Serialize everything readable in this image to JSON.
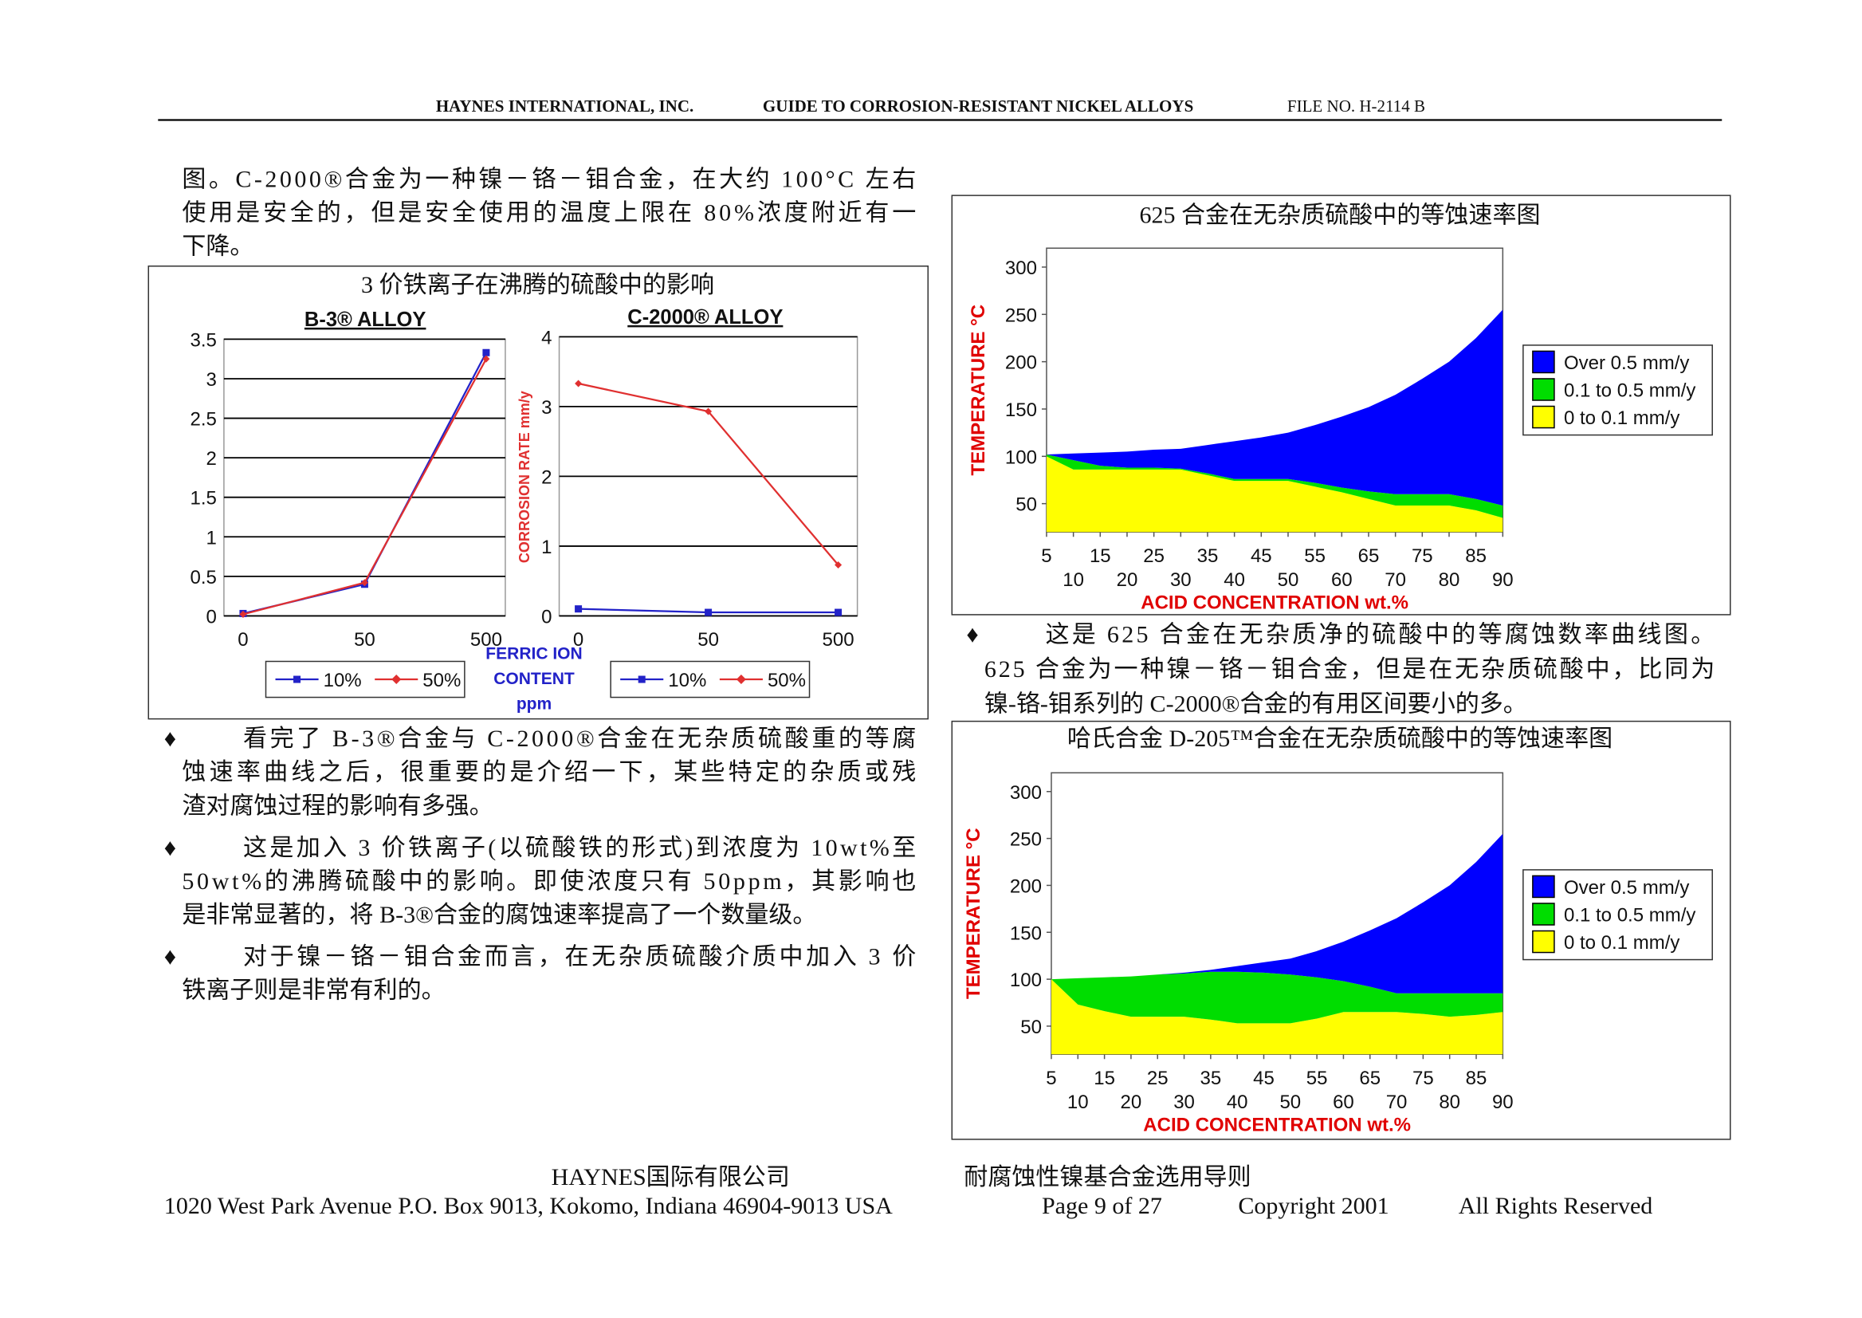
{
  "header": {
    "company": "HAYNES INTERNATIONAL, INC.",
    "guide": "GUIDE TO CORROSION-RESISTANT NICKEL ALLOYS",
    "file_no": "FILE NO. H-2114 B"
  },
  "bullet_symbol": "♦",
  "intro": [
    "图。C-2000®合金为一种镍－铬－钼合金，在大约 100°C 左右",
    "使用是安全的，但是安全使用的温度上限在 80%浓度附近有一",
    "下降。"
  ],
  "figure_1_title": "3 价铁离子在沸腾的硫酸中的影响",
  "left_bullets": [
    {
      "lines": [
        "看完了 B-3®合金与 C-2000®合金在无杂质硫酸重的等腐",
        "蚀速率曲线之后，很重要的是介绍一下，某些特定的杂质或残",
        "渣对腐蚀过程的影响有多强。"
      ]
    },
    {
      "lines": [
        "这是加入 3 价铁离子(以硫酸铁的形式)到浓度为 10wt%至",
        "50wt%的沸腾硫酸中的影响。即使浓度只有 50ppm，其影响也",
        "是非常显著的，将 B-3®合金的腐蚀速率提高了一个数量级。"
      ]
    },
    {
      "lines": [
        "对于镍－铬－钼合金而言，在无杂质硫酸介质中加入 3 价",
        "铁离子则是非常有利的。"
      ]
    }
  ],
  "right_bullet": {
    "lines": [
      "这是 625 合金在无杂质净的硫酸中的等腐蚀数率曲线图。",
      "625 合金为一种镍－铬－钼合金，但是在无杂质硫酸中，比同为",
      "镍-铬-钼系列的 C-2000®合金的有用区间要小的多。"
    ]
  },
  "footer": {
    "company_cn": "HAYNES国际有限公司",
    "guide_cn": "耐腐蚀性镍基合金选用导则",
    "address": "1020 West Park Avenue P.O. Box 9013, Kokomo, Indiana 46904-9013 USA",
    "page": "Page 9 of 27",
    "copyright": "Copyright 2001",
    "rights": "All Rights Reserved"
  },
  "chart_data": [
    {
      "type": "line",
      "title": "B-3® ALLOY",
      "categories": [
        "0",
        "50",
        "500"
      ],
      "series": [
        {
          "name": "10%",
          "color": "#2222c8",
          "marker": "square",
          "values": [
            0.03,
            0.4,
            3.33
          ]
        },
        {
          "name": "50%",
          "color": "#e03030",
          "marker": "diamond",
          "values": [
            0.02,
            0.42,
            3.25
          ]
        }
      ],
      "ylim": [
        0,
        3.5
      ],
      "yticks": [
        0,
        0.5,
        1,
        1.5,
        2,
        2.5,
        3,
        3.5
      ],
      "grid": true
    },
    {
      "type": "line",
      "title": "C-2000® ALLOY",
      "y_label": "CORROSION RATE mm/y",
      "x_label": [
        "FERRIC ION",
        "CONTENT",
        "ppm"
      ],
      "categories": [
        "0",
        "50",
        "500"
      ],
      "series": [
        {
          "name": "10%",
          "color": "#2222c8",
          "marker": "square",
          "values": [
            0.1,
            0.05,
            0.05
          ]
        },
        {
          "name": "50%",
          "color": "#e03030",
          "marker": "diamond",
          "values": [
            3.33,
            2.93,
            0.73
          ]
        }
      ],
      "ylim": [
        0,
        4
      ],
      "yticks": [
        0,
        1,
        2,
        3,
        4
      ],
      "grid": true
    },
    {
      "type": "area",
      "stacked": true,
      "title": "625 合金在无杂质硫酸中的等蚀速率图",
      "x_label": "ACID CONCENTRATION  wt.%",
      "y_label": "TEMPERATURE  °C",
      "x": [
        5,
        10,
        15,
        20,
        25,
        30,
        35,
        40,
        45,
        50,
        55,
        60,
        65,
        70,
        75,
        80,
        85,
        90
      ],
      "series": [
        {
          "name": "0 to 0.1 mm/y",
          "color": "#ffff00",
          "values": [
            100,
            86,
            86,
            86,
            86,
            86,
            80,
            74,
            74,
            74,
            68,
            62,
            55,
            48,
            48,
            48,
            43,
            35
          ]
        },
        {
          "name": "0.1 to 0.5 mm/y",
          "color": "#00dd00",
          "values": [
            2,
            10,
            4,
            2,
            2,
            1,
            2,
            2,
            2,
            2,
            4,
            5,
            8,
            12,
            12,
            12,
            12,
            13
          ]
        },
        {
          "name": "Over 0.5 mm/y",
          "color": "#0000ff",
          "values": [
            0,
            7,
            14,
            17,
            19,
            21,
            30,
            40,
            44,
            49,
            61,
            75,
            89,
            105,
            122,
            140,
            170,
            207
          ]
        }
      ],
      "xlim": [
        5,
        90
      ],
      "xticks": [
        5,
        10,
        15,
        20,
        25,
        30,
        35,
        40,
        45,
        50,
        55,
        60,
        65,
        70,
        75,
        80,
        85,
        90
      ],
      "ylim": [
        20,
        320
      ],
      "yticks": [
        50,
        100,
        150,
        200,
        250,
        300
      ]
    },
    {
      "type": "area",
      "stacked": true,
      "title": "哈氏合金 D-205™合金在无杂质硫酸中的等蚀速率图",
      "x_label": "ACID CONCENTRATION  wt.%",
      "y_label": "TEMPERATURE  °C",
      "x": [
        5,
        10,
        15,
        20,
        25,
        30,
        35,
        40,
        45,
        50,
        55,
        60,
        65,
        70,
        75,
        80,
        85,
        90
      ],
      "series": [
        {
          "name": "0 to 0.1 mm/y",
          "color": "#ffff00",
          "values": [
            100,
            73,
            66,
            60,
            60,
            60,
            57,
            53,
            53,
            53,
            58,
            65,
            65,
            65,
            63,
            60,
            62,
            65
          ]
        },
        {
          "name": "0.1 to 0.5 mm/y",
          "color": "#00dd00",
          "values": [
            0,
            28,
            36,
            43,
            45,
            46,
            51,
            55,
            54,
            52,
            44,
            33,
            27,
            20,
            22,
            25,
            23,
            20
          ]
        },
        {
          "name": "Over 0.5 mm/y",
          "color": "#0000ff",
          "values": [
            0,
            0,
            0,
            0,
            0,
            1,
            2,
            6,
            11,
            17,
            28,
            42,
            60,
            80,
            97,
            115,
            140,
            170
          ]
        }
      ],
      "xlim": [
        5,
        90
      ],
      "xticks": [
        5,
        10,
        15,
        20,
        25,
        30,
        35,
        40,
        45,
        50,
        55,
        60,
        65,
        70,
        75,
        80,
        85,
        90
      ],
      "ylim": [
        20,
        320
      ],
      "yticks": [
        50,
        100,
        150,
        200,
        250,
        300
      ]
    }
  ]
}
